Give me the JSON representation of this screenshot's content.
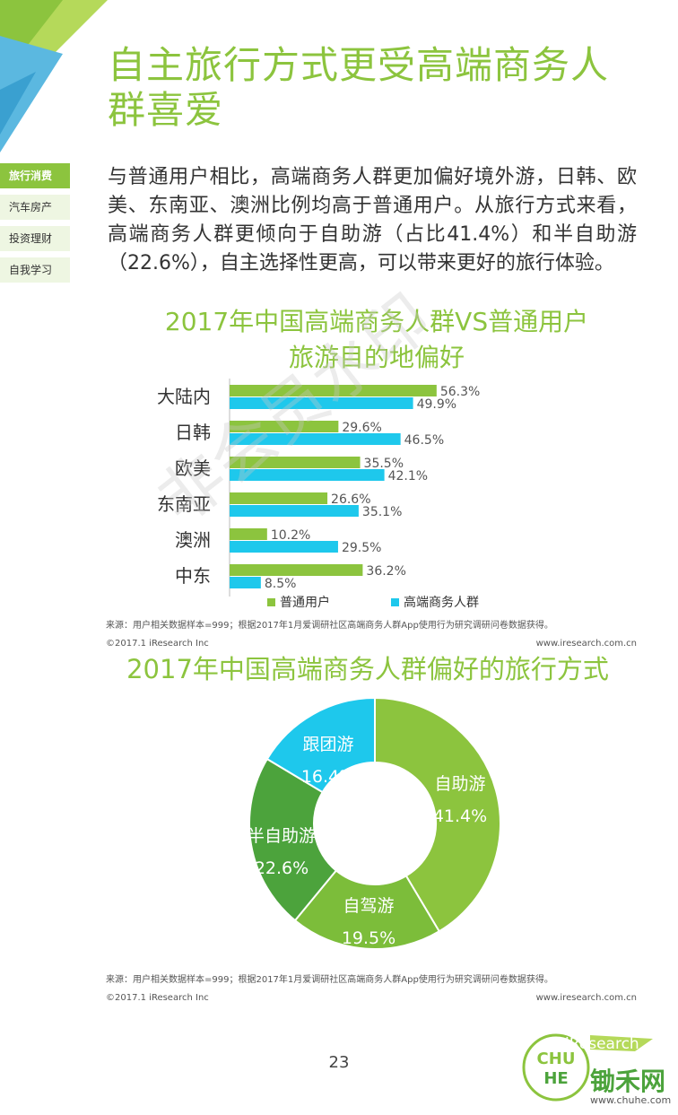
{
  "page": {
    "title": "自主旅行方式更受高端商务人群喜爱",
    "intro": "与普通用户相比，高端商务人群更加偏好境外游，日韩、欧美、东南亚、澳洲比例均高于普通用户。从旅行方式来看，高端商务人群更倾向于自助游（占比41.4%）和半自助游（22.6%），自主选择性更高，可以带来更好的旅行体验。",
    "page_number": "23",
    "watermark": "非会员水印",
    "brand": "iResearch",
    "chuhe_text": "锄禾网",
    "chuhe_url": "www.chuhe.com"
  },
  "sidebar": {
    "items": [
      {
        "label": "旅行消费",
        "active": true
      },
      {
        "label": "汽车房产",
        "active": false
      },
      {
        "label": "投资理财",
        "active": false
      },
      {
        "label": "自我学习",
        "active": false
      }
    ]
  },
  "colors": {
    "green": "#8cc43e",
    "cyan": "#1ec8ec",
    "dark_green": "#4ca33c",
    "mid_green": "#7cbd3a"
  },
  "chart1": {
    "title_line1": "2017年中国高端商务人群VS普通用户",
    "title_line2": "旅游目的地偏好",
    "source": "来源：用户相关数据样本=999；根据2017年1月爱调研社区高端商务人群App使用行为研究调研问卷数据获得。",
    "copyright": "©2017.1 iResearch Inc",
    "url": "www.iresearch.com.cn"
  },
  "chart2": {
    "title": "2017年中国高端商务人群偏好的旅行方式",
    "source": "来源：用户相关数据样本=999；根据2017年1月爱调研社区高端商务人群App使用行为研究调研问卷数据获得。",
    "copyright": "©2017.1 iResearch Inc",
    "url": "www.iresearch.com.cn"
  },
  "chart_data": [
    {
      "type": "bar",
      "orientation": "horizontal",
      "title": "2017年中国高端商务人群VS普通用户旅游目的地偏好",
      "categories": [
        "大陆内",
        "日韩",
        "欧美",
        "东南亚",
        "澳洲",
        "中东"
      ],
      "series": [
        {
          "name": "普通用户",
          "color": "#8cc43e",
          "values": [
            56.3,
            29.6,
            35.5,
            26.6,
            10.2,
            36.2
          ],
          "labels": [
            "56.3%",
            "29.6%",
            "35.5%",
            "26.6%",
            "10.2%",
            "36.2%"
          ]
        },
        {
          "name": "高端商务人群",
          "color": "#1ec8ec",
          "values": [
            49.9,
            46.5,
            42.1,
            35.1,
            29.5,
            8.5
          ],
          "labels": [
            "49.9%",
            "46.5%",
            "42.1%",
            "35.1%",
            "29.5%",
            "8.5%"
          ]
        }
      ],
      "unit": "%",
      "legend": "bottom"
    },
    {
      "type": "pie",
      "style": "donut",
      "title": "2017年中国高端商务人群偏好的旅行方式",
      "slices": [
        {
          "label": "自助游",
          "value": 41.4,
          "display": "41.4%",
          "color": "#8cc43e"
        },
        {
          "label": "自驾游",
          "value": 19.5,
          "display": "19.5%",
          "color": "#7cbd3a"
        },
        {
          "label": "半自助游",
          "value": 22.6,
          "display": "22.6%",
          "color": "#4ca33c"
        },
        {
          "label": "跟团游",
          "value": 16.4,
          "display": "16.4%",
          "color": "#1ec8ec"
        }
      ]
    }
  ]
}
